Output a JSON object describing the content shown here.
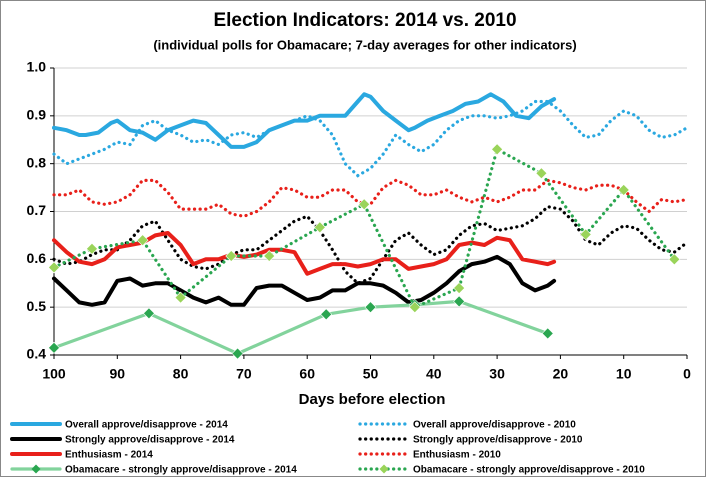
{
  "chart_data": {
    "type": "line",
    "title": "Election Indicators: 2014 vs. 2010",
    "subtitle": "(individual polls for Obamacare; 7-day averages for other indicators)",
    "x_label": "Days before election",
    "xlim": [
      100,
      0
    ],
    "xticks": [
      100,
      90,
      80,
      70,
      60,
      50,
      40,
      30,
      20,
      10,
      0
    ],
    "ylim": [
      0.4,
      1.0
    ],
    "yticks": [
      0.4,
      0.5,
      0.6,
      0.7,
      0.8,
      0.9,
      {
        "value": 1.0,
        "label": "1.0"
      }
    ],
    "grid": true,
    "series": [
      {
        "name": "Overall approve/disapprove - 2014",
        "color": "#2aa8e0",
        "style": "solid",
        "x": [
          100,
          98,
          96,
          95,
          93,
          91,
          90,
          88,
          86,
          84,
          82,
          80,
          78,
          76,
          74,
          72,
          70,
          68,
          66,
          64,
          62,
          60,
          58,
          56,
          54,
          52,
          51,
          50,
          48,
          46,
          44,
          43,
          41,
          39,
          37,
          35,
          33,
          31,
          29,
          27,
          25,
          23,
          21
        ],
        "values": [
          0.875,
          0.87,
          0.86,
          0.86,
          0.865,
          0.885,
          0.89,
          0.87,
          0.865,
          0.85,
          0.87,
          0.88,
          0.89,
          0.885,
          0.86,
          0.835,
          0.835,
          0.845,
          0.87,
          0.88,
          0.89,
          0.89,
          0.9,
          0.9,
          0.9,
          0.93,
          0.945,
          0.94,
          0.91,
          0.89,
          0.87,
          0.875,
          0.89,
          0.9,
          0.91,
          0.925,
          0.93,
          0.945,
          0.93,
          0.9,
          0.895,
          0.92,
          0.935
        ]
      },
      {
        "name": "Overall approve/disapprove - 2010",
        "color": "#2aa8e0",
        "style": "dotted",
        "x": [
          100,
          98,
          96,
          94,
          92,
          90,
          88,
          86,
          84,
          82,
          80,
          78,
          76,
          74,
          72,
          70,
          68,
          66,
          64,
          62,
          60,
          58,
          56,
          54,
          52,
          50,
          48,
          46,
          44,
          42,
          40,
          38,
          36,
          34,
          32,
          30,
          28,
          26,
          24,
          22,
          20,
          18,
          16,
          14,
          12,
          10,
          8,
          6,
          4,
          2,
          0
        ],
        "values": [
          0.82,
          0.8,
          0.81,
          0.82,
          0.83,
          0.845,
          0.84,
          0.88,
          0.89,
          0.87,
          0.86,
          0.845,
          0.85,
          0.84,
          0.86,
          0.865,
          0.855,
          0.87,
          0.88,
          0.89,
          0.9,
          0.89,
          0.86,
          0.8,
          0.775,
          0.79,
          0.82,
          0.86,
          0.84,
          0.825,
          0.84,
          0.87,
          0.89,
          0.9,
          0.9,
          0.895,
          0.9,
          0.91,
          0.93,
          0.93,
          0.91,
          0.88,
          0.855,
          0.86,
          0.89,
          0.91,
          0.9,
          0.87,
          0.855,
          0.86,
          0.875
        ]
      },
      {
        "name": "Strongly approve/disapprove - 2014",
        "color": "#000000",
        "style": "solid",
        "x": [
          100,
          98,
          96,
          94,
          92,
          90,
          88,
          86,
          84,
          82,
          80,
          78,
          76,
          74,
          72,
          70,
          68,
          66,
          64,
          62,
          60,
          58,
          56,
          54,
          52,
          50,
          48,
          46,
          44,
          42,
          40,
          38,
          36,
          34,
          32,
          30,
          28,
          26,
          24,
          22,
          21
        ],
        "values": [
          0.56,
          0.535,
          0.51,
          0.505,
          0.51,
          0.555,
          0.56,
          0.545,
          0.55,
          0.55,
          0.535,
          0.52,
          0.51,
          0.52,
          0.505,
          0.505,
          0.54,
          0.545,
          0.545,
          0.53,
          0.515,
          0.52,
          0.535,
          0.535,
          0.55,
          0.55,
          0.545,
          0.53,
          0.51,
          0.515,
          0.53,
          0.55,
          0.575,
          0.59,
          0.595,
          0.605,
          0.59,
          0.55,
          0.535,
          0.545,
          0.555
        ]
      },
      {
        "name": "Strongly approve/disapprove - 2010",
        "color": "#000000",
        "style": "dotted",
        "x": [
          100,
          98,
          96,
          94,
          92,
          90,
          88,
          86,
          84,
          82,
          80,
          78,
          76,
          74,
          72,
          70,
          68,
          66,
          64,
          62,
          60,
          58,
          56,
          54,
          52,
          50,
          48,
          46,
          44,
          42,
          40,
          38,
          36,
          34,
          32,
          30,
          28,
          26,
          24,
          22,
          20,
          18,
          16,
          14,
          12,
          10,
          8,
          6,
          4,
          2,
          0
        ],
        "values": [
          0.6,
          0.59,
          0.595,
          0.61,
          0.62,
          0.62,
          0.64,
          0.67,
          0.68,
          0.64,
          0.6,
          0.585,
          0.58,
          0.59,
          0.61,
          0.62,
          0.62,
          0.64,
          0.66,
          0.68,
          0.69,
          0.66,
          0.62,
          0.575,
          0.55,
          0.56,
          0.6,
          0.64,
          0.655,
          0.63,
          0.61,
          0.62,
          0.65,
          0.67,
          0.675,
          0.66,
          0.665,
          0.67,
          0.685,
          0.71,
          0.705,
          0.68,
          0.64,
          0.63,
          0.655,
          0.67,
          0.665,
          0.64,
          0.62,
          0.615,
          0.635
        ]
      },
      {
        "name": "Enthusiasm - 2014",
        "color": "#e8201a",
        "style": "solid",
        "x": [
          100,
          98,
          96,
          94,
          92,
          90,
          88,
          86,
          84,
          82,
          80,
          78,
          76,
          74,
          72,
          70,
          68,
          66,
          64,
          62,
          60,
          58,
          56,
          54,
          52,
          50,
          48,
          46,
          44,
          42,
          40,
          38,
          36,
          34,
          32,
          30,
          28,
          26,
          24,
          22,
          21
        ],
        "values": [
          0.64,
          0.615,
          0.595,
          0.59,
          0.6,
          0.625,
          0.63,
          0.635,
          0.65,
          0.655,
          0.63,
          0.59,
          0.6,
          0.6,
          0.61,
          0.605,
          0.61,
          0.62,
          0.62,
          0.615,
          0.57,
          0.58,
          0.59,
          0.59,
          0.585,
          0.59,
          0.6,
          0.6,
          0.58,
          0.585,
          0.59,
          0.6,
          0.63,
          0.635,
          0.63,
          0.645,
          0.64,
          0.6,
          0.595,
          0.59,
          0.595
        ]
      },
      {
        "name": "Enthusiasm - 2010",
        "color": "#e8201a",
        "style": "dotted",
        "x": [
          100,
          98,
          96,
          94,
          92,
          90,
          88,
          86,
          84,
          82,
          80,
          78,
          76,
          74,
          72,
          70,
          68,
          66,
          64,
          62,
          60,
          58,
          56,
          54,
          52,
          50,
          48,
          46,
          44,
          42,
          40,
          38,
          36,
          34,
          32,
          30,
          28,
          26,
          24,
          22,
          20,
          18,
          16,
          14,
          12,
          10,
          8,
          6,
          4,
          2,
          0
        ],
        "values": [
          0.735,
          0.735,
          0.745,
          0.72,
          0.715,
          0.72,
          0.735,
          0.765,
          0.765,
          0.74,
          0.705,
          0.705,
          0.705,
          0.715,
          0.695,
          0.69,
          0.7,
          0.72,
          0.75,
          0.745,
          0.73,
          0.73,
          0.745,
          0.745,
          0.72,
          0.715,
          0.75,
          0.765,
          0.755,
          0.735,
          0.735,
          0.745,
          0.73,
          0.72,
          0.73,
          0.72,
          0.73,
          0.745,
          0.745,
          0.765,
          0.76,
          0.75,
          0.745,
          0.755,
          0.755,
          0.745,
          0.72,
          0.7,
          0.725,
          0.72,
          0.725
        ]
      },
      {
        "name": "Obamacare - strongly approve/disapprove - 2014",
        "color": "#82d39c",
        "style": "solid",
        "marker": "diamond",
        "marker_color": "#2aa650",
        "x": [
          100,
          85,
          71,
          57,
          50,
          43,
          36,
          22
        ],
        "values": [
          0.415,
          0.487,
          0.403,
          0.485,
          0.5,
          0.505,
          0.512,
          0.445
        ]
      },
      {
        "name": "Obamacare - strongly approve/disapprove - 2010",
        "color": "#2aa650",
        "style": "dotted",
        "marker": "diamond",
        "marker_color": "#9ad45a",
        "x": [
          100,
          94,
          86,
          80,
          72,
          66,
          58,
          51,
          43,
          36,
          30,
          23,
          16,
          10,
          2
        ],
        "values": [
          0.583,
          0.622,
          0.64,
          0.52,
          0.607,
          0.607,
          0.667,
          0.715,
          0.5,
          0.54,
          0.83,
          0.78,
          0.652,
          0.745,
          0.6
        ]
      }
    ]
  }
}
